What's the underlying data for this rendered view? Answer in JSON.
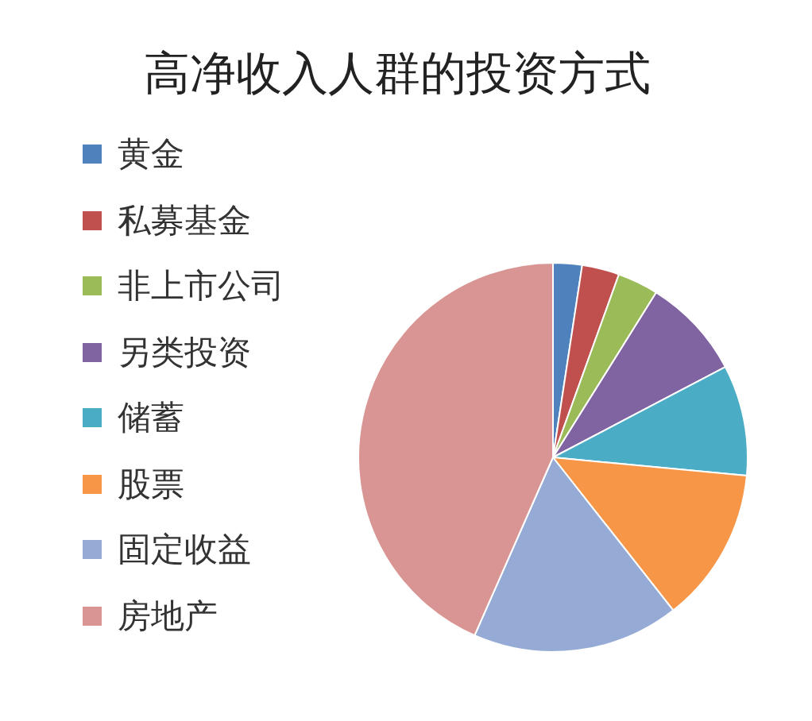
{
  "chart_data": {
    "type": "pie",
    "title": "高净收入人群的投资方式",
    "categories": [
      "黄金",
      "私募基金",
      "非上市公司",
      "另类投资",
      "储蓄",
      "股票",
      "固定收益",
      "房地产"
    ],
    "values": [
      2.4,
      3.1,
      3.4,
      8.4,
      9.2,
      12.9,
      17.2,
      43.4
    ],
    "colors": [
      "#4f81bd",
      "#c0504d",
      "#9bbb59",
      "#8064a2",
      "#4bacc6",
      "#f79646",
      "#95abd6",
      "#d99594"
    ],
    "legend": "left"
  }
}
